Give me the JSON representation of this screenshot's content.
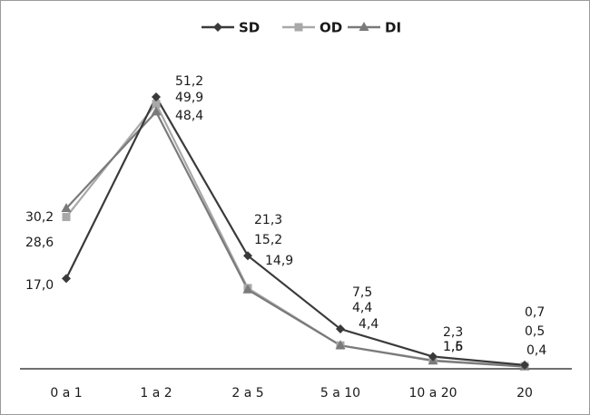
{
  "chart_data": {
    "type": "line",
    "categories": [
      "0 a 1",
      "1 a 2",
      "2 a 5",
      "5 a 10",
      "10 a 20",
      "20"
    ],
    "series": [
      {
        "name": "SD",
        "values": [
          17.0,
          51.2,
          21.3,
          7.5,
          2.3,
          0.7
        ],
        "color": "#3a3a3a",
        "marker": "diamond",
        "labels": [
          "17,0",
          "51,2",
          "21,3",
          "7,5",
          "2,3",
          "0,7"
        ]
      },
      {
        "name": "OD",
        "values": [
          28.6,
          49.9,
          15.2,
          4.4,
          1.6,
          0.5
        ],
        "color": "#a8a8a8",
        "marker": "square",
        "labels": [
          "28,6",
          "49,9",
          "15,2",
          "4,4",
          "1,6",
          "0,5"
        ]
      },
      {
        "name": "DI",
        "values": [
          30.2,
          48.4,
          14.9,
          4.4,
          1.5,
          0.4
        ],
        "color": "#7a7a7a",
        "marker": "triangle",
        "labels": [
          "30,2",
          "48,4",
          "14,9",
          "4,4",
          "1,5",
          "0,4"
        ]
      }
    ],
    "ylim": [
      0,
      55
    ],
    "grid": false,
    "legend": "top-center"
  }
}
